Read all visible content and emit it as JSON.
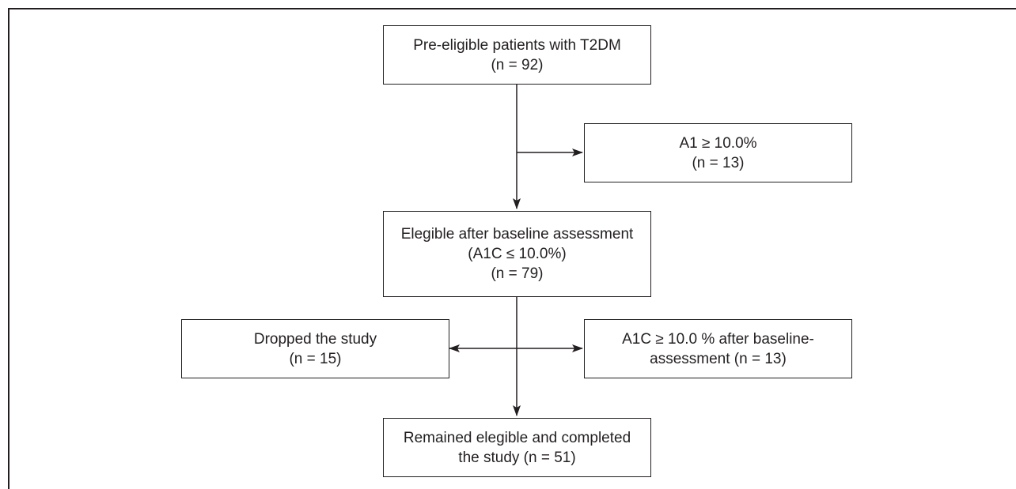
{
  "boxes": {
    "pre_eligible": {
      "line1": "Pre-eligible patients with T2DM",
      "line2": "(n = 92)"
    },
    "excluded_a1": {
      "line1": "A1 ≥ 10.0%",
      "line2": "(n = 13)"
    },
    "eligible_baseline": {
      "line1": "Elegible after baseline assessment",
      "line2": "(A1C ≤ 10.0%)",
      "line3": "(n = 79)"
    },
    "dropped": {
      "line1": "Dropped the study",
      "line2": "(n = 15)"
    },
    "a1c_after_baseline": {
      "line1": "A1C ≥ 10.0 % after baseline-",
      "line2": "assessment (n = 13)"
    },
    "completed": {
      "line1": "Remained elegible and completed",
      "line2": "the study (n = 51)"
    }
  },
  "colors": {
    "stroke": "#231f20",
    "background": "#ffffff"
  }
}
